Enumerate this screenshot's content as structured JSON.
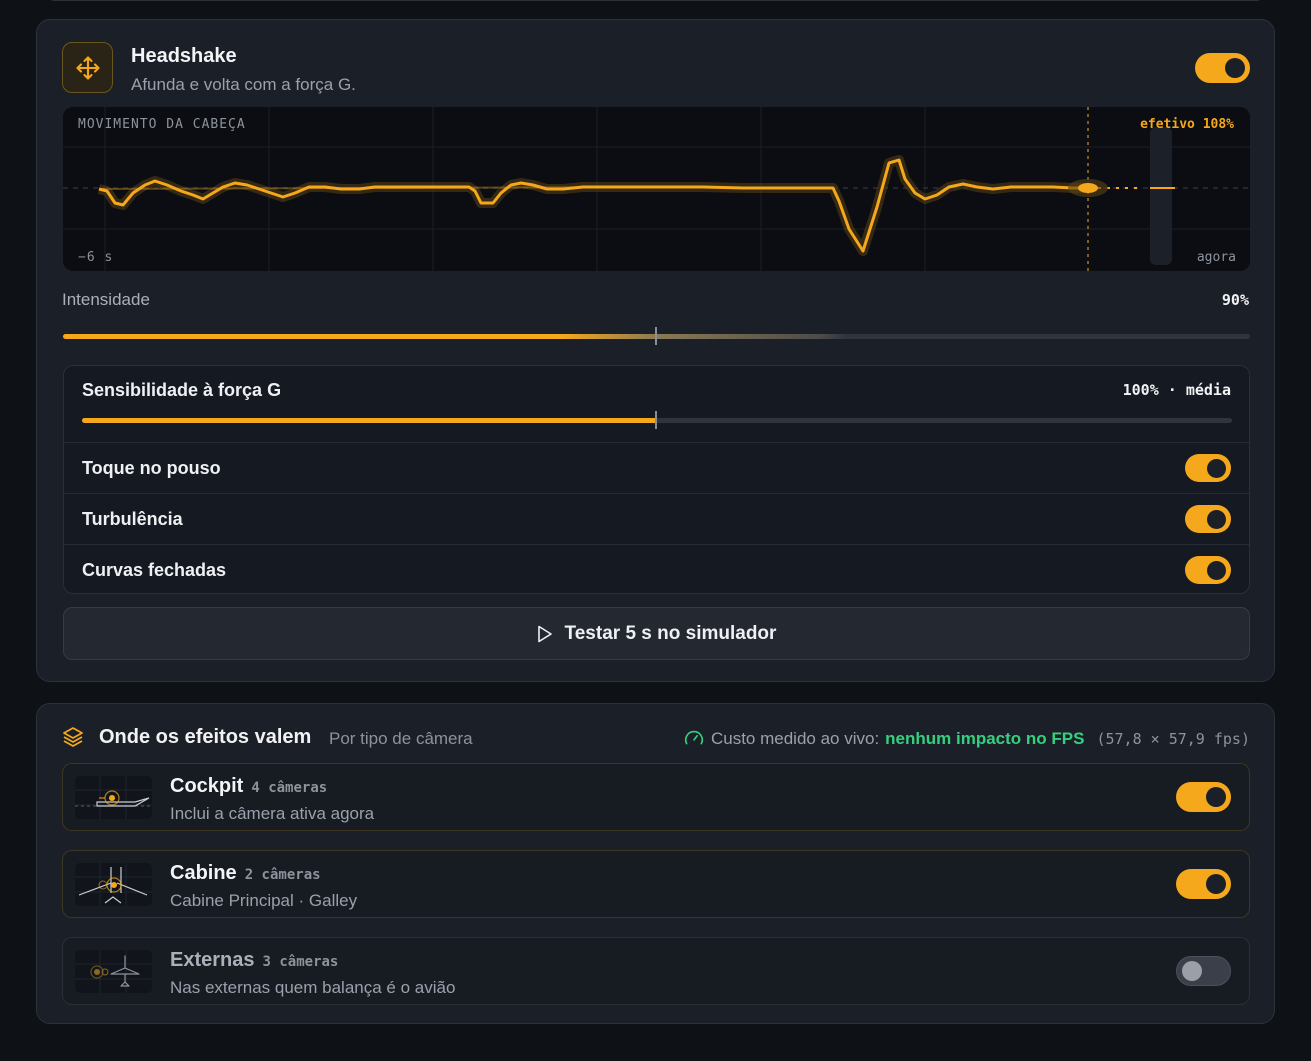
{
  "headshake": {
    "title": "Headshake",
    "subtitle": "Afunda e volta com a força G.",
    "enabled": true,
    "graph": {
      "label": "MOVIMENTO DA CABEÇA",
      "effective": "efetivo 108%",
      "left_time": "−6 s",
      "right_time": "agora"
    },
    "intensity": {
      "label": "Intensidade",
      "value": "90%",
      "fraction": 0.9
    },
    "sensitivity": {
      "label": "Sensibilidade à força G",
      "value": "100% · média",
      "fraction": 0.5
    },
    "options": [
      {
        "label": "Toque no pouso",
        "enabled": true
      },
      {
        "label": "Turbulência",
        "enabled": true
      },
      {
        "label": "Curvas fechadas",
        "enabled": true
      }
    ],
    "test_button": "Testar 5 s no simulador"
  },
  "where": {
    "title": "Onde os efeitos valem",
    "subtitle": "Por tipo de câmera",
    "cost_label": "Custo medido ao vivo:",
    "cost_value": "nenhum impacto no FPS",
    "cost_fps": "(57,8 × 57,9 fps)",
    "cameras": [
      {
        "name": "Cockpit",
        "count": "4 câmeras",
        "desc": "Inclui a câmera ativa agora",
        "enabled": true
      },
      {
        "name": "Cabine",
        "count": "2 câmeras",
        "desc": "Cabine Principal · Galley",
        "enabled": true
      },
      {
        "name": "Externas",
        "count": "3 câmeras",
        "desc": "Nas externas quem balança é o avião",
        "enabled": false
      }
    ]
  },
  "colors": {
    "accent": "#f5a81c",
    "good": "#35d07f"
  }
}
